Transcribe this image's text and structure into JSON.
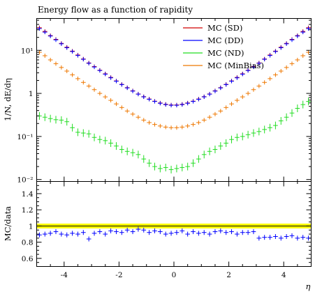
{
  "chart_data": [
    {
      "type": "line",
      "title": "Energy flow as a function of rapidity",
      "ylabel": "1/N, dE/dη",
      "xlabel": "",
      "xlim": [
        -5.0,
        5.0
      ],
      "ylim": [
        0.009,
        55
      ],
      "yscale": "log",
      "x_bin_width": 0.2,
      "yticks": [
        {
          "value": 0.01,
          "label": "10⁻²"
        },
        {
          "value": 0.1,
          "label": "10⁻¹"
        },
        {
          "value": 1,
          "label": "1"
        },
        {
          "value": 10,
          "label": "10¹"
        }
      ],
      "legend_position": "top-right",
      "x": [
        -4.9,
        -4.7,
        -4.5,
        -4.3,
        -4.1,
        -3.9,
        -3.7,
        -3.5,
        -3.3,
        -3.1,
        -2.9,
        -2.7,
        -2.5,
        -2.3,
        -2.1,
        -1.9,
        -1.7,
        -1.5,
        -1.3,
        -1.1,
        -0.9,
        -0.7,
        -0.5,
        -0.3,
        -0.1,
        0.1,
        0.3,
        0.5,
        0.7,
        0.9,
        1.1,
        1.3,
        1.5,
        1.7,
        1.9,
        2.1,
        2.3,
        2.5,
        2.7,
        2.9,
        3.1,
        3.3,
        3.5,
        3.7,
        3.9,
        4.1,
        4.3,
        4.5,
        4.7,
        4.9
      ],
      "series": [
        {
          "name": "MC (SD)",
          "color": "#d00000",
          "values": [
            33.5,
            27.5,
            22.0,
            18.0,
            14.5,
            11.8,
            9.6,
            7.8,
            6.3,
            5.1,
            4.2,
            3.45,
            2.85,
            2.35,
            1.95,
            1.62,
            1.36,
            1.15,
            0.97,
            0.84,
            0.74,
            0.66,
            0.6,
            0.56,
            0.54,
            0.54,
            0.56,
            0.6,
            0.66,
            0.74,
            0.84,
            0.97,
            1.15,
            1.36,
            1.62,
            1.95,
            2.35,
            2.85,
            3.45,
            4.2,
            5.1,
            6.3,
            7.8,
            9.6,
            11.8,
            14.5,
            18.0,
            22.0,
            27.5,
            33.5
          ]
        },
        {
          "name": "MC (DD)",
          "color": "#0000ff",
          "values": [
            32.0,
            26.5,
            21.5,
            17.5,
            14.2,
            11.5,
            9.4,
            7.6,
            6.2,
            5.0,
            4.1,
            3.4,
            2.8,
            2.3,
            1.92,
            1.6,
            1.34,
            1.13,
            0.96,
            0.83,
            0.73,
            0.65,
            0.59,
            0.55,
            0.53,
            0.53,
            0.55,
            0.59,
            0.65,
            0.73,
            0.83,
            0.96,
            1.13,
            1.34,
            1.6,
            1.92,
            2.3,
            2.8,
            3.4,
            4.1,
            5.0,
            6.2,
            7.6,
            9.4,
            11.5,
            14.2,
            17.5,
            21.5,
            26.5,
            32.0
          ]
        },
        {
          "name": "MC (ND)",
          "color": "#22dd22",
          "values": [
            0.3,
            0.28,
            0.26,
            0.245,
            0.24,
            0.22,
            0.16,
            0.125,
            0.12,
            0.115,
            0.095,
            0.085,
            0.08,
            0.07,
            0.06,
            0.05,
            0.045,
            0.042,
            0.038,
            0.03,
            0.024,
            0.02,
            0.018,
            0.019,
            0.017,
            0.018,
            0.019,
            0.02,
            0.024,
            0.03,
            0.038,
            0.045,
            0.05,
            0.06,
            0.07,
            0.085,
            0.095,
            0.1,
            0.11,
            0.12,
            0.13,
            0.145,
            0.16,
            0.18,
            0.23,
            0.28,
            0.35,
            0.45,
            0.55,
            0.65
          ]
        },
        {
          "name": "MC (MinBias)",
          "color": "#ee7700",
          "values": [
            9.0,
            7.5,
            6.0,
            4.9,
            4.0,
            3.3,
            2.7,
            2.2,
            1.8,
            1.48,
            1.22,
            1.0,
            0.83,
            0.69,
            0.57,
            0.47,
            0.39,
            0.33,
            0.28,
            0.24,
            0.21,
            0.19,
            0.175,
            0.165,
            0.16,
            0.16,
            0.165,
            0.175,
            0.19,
            0.21,
            0.24,
            0.28,
            0.33,
            0.39,
            0.47,
            0.57,
            0.69,
            0.83,
            1.0,
            1.22,
            1.48,
            1.8,
            2.2,
            2.7,
            3.3,
            4.0,
            4.9,
            6.0,
            7.5,
            9.0
          ]
        }
      ]
    },
    {
      "type": "line",
      "title": "",
      "ylabel": "MC/data",
      "xlabel": "η",
      "xlim": [
        -5.0,
        5.0
      ],
      "ylim": [
        0.5,
        1.55
      ],
      "x_bin_width": 0.2,
      "yticks": [
        {
          "value": 0.6,
          "label": "0.6"
        },
        {
          "value": 0.8,
          "label": "0.8"
        },
        {
          "value": 1.0,
          "label": "1"
        },
        {
          "value": 1.2,
          "label": "1.2"
        },
        {
          "value": 1.4,
          "label": "1.4"
        }
      ],
      "xticks": [
        {
          "value": -4,
          "label": "-4"
        },
        {
          "value": -2,
          "label": "-2"
        },
        {
          "value": 0,
          "label": "0"
        },
        {
          "value": 2,
          "label": "2"
        },
        {
          "value": 4,
          "label": "4"
        }
      ],
      "reference_band": {
        "value": 1.0,
        "low": 0.97,
        "high": 1.03,
        "color": "#ffff00"
      },
      "x": [
        -4.9,
        -4.7,
        -4.5,
        -4.3,
        -4.1,
        -3.9,
        -3.7,
        -3.5,
        -3.3,
        -3.1,
        -2.9,
        -2.7,
        -2.5,
        -2.3,
        -2.1,
        -1.9,
        -1.7,
        -1.5,
        -1.3,
        -1.1,
        -0.9,
        -0.7,
        -0.5,
        -0.3,
        -0.1,
        0.1,
        0.3,
        0.5,
        0.7,
        0.9,
        1.1,
        1.3,
        1.5,
        1.7,
        1.9,
        2.1,
        2.3,
        2.5,
        2.7,
        2.9,
        3.1,
        3.3,
        3.5,
        3.7,
        3.9,
        4.1,
        4.3,
        4.5,
        4.7,
        4.9
      ],
      "series": [
        {
          "name": "",
          "color": "#0000ff",
          "values": [
            0.89,
            0.9,
            0.91,
            0.93,
            0.9,
            0.89,
            0.91,
            0.9,
            0.92,
            0.84,
            0.91,
            0.93,
            0.9,
            0.94,
            0.93,
            0.92,
            0.95,
            0.93,
            0.96,
            0.95,
            0.92,
            0.94,
            0.93,
            0.9,
            0.91,
            0.92,
            0.94,
            0.9,
            0.93,
            0.91,
            0.92,
            0.9,
            0.93,
            0.94,
            0.92,
            0.93,
            0.9,
            0.92,
            0.92,
            0.93,
            0.85,
            0.86,
            0.86,
            0.87,
            0.85,
            0.87,
            0.88,
            0.85,
            0.86,
            0.85
          ]
        }
      ]
    }
  ]
}
